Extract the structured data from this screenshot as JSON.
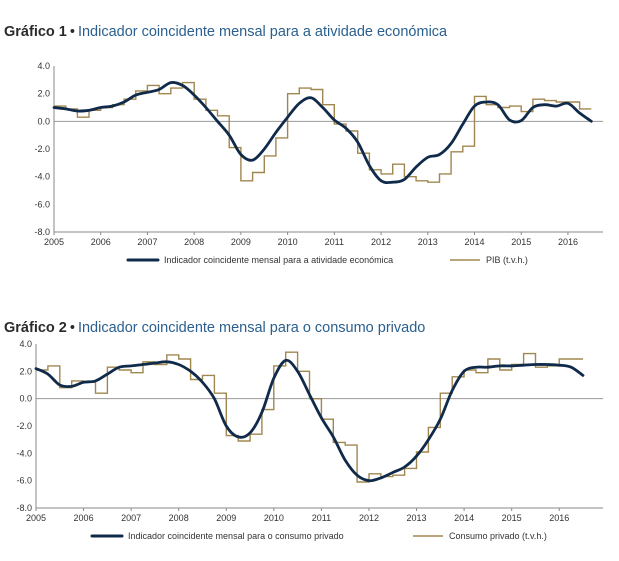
{
  "chart_data": [
    {
      "type": "line",
      "number": "Gráfico 1",
      "title": "Indicador coincidente mensal para a atividade económica",
      "xlim": [
        2005,
        2016.75
      ],
      "ylim": [
        -8,
        4
      ],
      "x_ticks": [
        "2005",
        "2006",
        "2007",
        "2008",
        "2009",
        "2010",
        "2011",
        "2012",
        "2013",
        "2014",
        "2015",
        "2016"
      ],
      "y_ticks": [
        "4.0",
        "2.0",
        "0.0",
        "-2.0",
        "-4.0",
        "-6.0",
        "-8.0"
      ],
      "series": [
        {
          "name": "Indicador coincidente mensal para a atividade económica",
          "color": "#0f2a4a",
          "style": "smooth",
          "x": [
            2005.0,
            2005.25,
            2005.5,
            2005.75,
            2006.0,
            2006.25,
            2006.5,
            2006.75,
            2007.0,
            2007.25,
            2007.5,
            2007.75,
            2008.0,
            2008.25,
            2008.5,
            2008.75,
            2009.0,
            2009.25,
            2009.5,
            2009.75,
            2010.0,
            2010.25,
            2010.5,
            2010.75,
            2011.0,
            2011.25,
            2011.5,
            2011.75,
            2012.0,
            2012.25,
            2012.5,
            2012.75,
            2013.0,
            2013.25,
            2013.5,
            2013.75,
            2014.0,
            2014.25,
            2014.5,
            2014.75,
            2015.0,
            2015.25,
            2015.5,
            2015.75,
            2016.0,
            2016.25,
            2016.5
          ],
          "y": [
            1.0,
            0.9,
            0.75,
            0.8,
            1.0,
            1.1,
            1.4,
            1.9,
            2.1,
            2.3,
            2.8,
            2.6,
            1.9,
            1.0,
            0.0,
            -1.0,
            -2.4,
            -2.8,
            -2.0,
            -0.8,
            0.3,
            1.3,
            1.7,
            1.0,
            0.1,
            -0.5,
            -1.5,
            -3.2,
            -4.3,
            -4.4,
            -4.2,
            -3.3,
            -2.6,
            -2.4,
            -1.6,
            -0.2,
            1.1,
            1.4,
            1.2,
            0.1,
            0.05,
            1.0,
            1.2,
            1.1,
            1.3,
            0.6,
            0.0
          ]
        },
        {
          "name": "PIB (t.v.h.)",
          "color": "#a0874f",
          "style": "step",
          "x": [
            2005.0,
            2005.25,
            2005.5,
            2005.75,
            2006.0,
            2006.25,
            2006.5,
            2006.75,
            2007.0,
            2007.25,
            2007.5,
            2007.75,
            2008.0,
            2008.25,
            2008.5,
            2008.75,
            2009.0,
            2009.25,
            2009.5,
            2009.75,
            2010.0,
            2010.25,
            2010.5,
            2010.75,
            2011.0,
            2011.25,
            2011.5,
            2011.75,
            2012.0,
            2012.25,
            2012.5,
            2012.75,
            2013.0,
            2013.25,
            2013.5,
            2013.75,
            2014.0,
            2014.25,
            2014.5,
            2014.75,
            2015.0,
            2015.25,
            2015.5,
            2015.75,
            2016.0,
            2016.25
          ],
          "y": [
            1.1,
            0.9,
            0.3,
            0.8,
            1.0,
            1.2,
            1.6,
            2.2,
            2.6,
            2.0,
            2.4,
            2.8,
            1.6,
            0.8,
            0.4,
            -1.9,
            -4.3,
            -3.7,
            -2.5,
            -1.2,
            2.0,
            2.4,
            2.3,
            1.2,
            -0.2,
            -0.7,
            -2.3,
            -3.5,
            -3.8,
            -3.1,
            -4.0,
            -4.3,
            -4.4,
            -3.8,
            -2.2,
            -1.8,
            1.8,
            1.2,
            1.0,
            1.1,
            0.7,
            1.6,
            1.5,
            1.4,
            1.4,
            0.9
          ]
        }
      ]
    },
    {
      "type": "line",
      "number": "Gráfico 2",
      "title": "Indicador coincidente mensal para o consumo privado",
      "xlim": [
        2005,
        2016.92
      ],
      "ylim": [
        -8,
        4
      ],
      "x_ticks": [
        "2005",
        "2006",
        "2007",
        "2008",
        "2009",
        "2010",
        "2011",
        "2012",
        "2013",
        "2014",
        "2015",
        "2016"
      ],
      "y_ticks": [
        "4.0",
        "2.0",
        "0.0",
        "-2.0",
        "-4.0",
        "-6.0",
        "-8.0"
      ],
      "series": [
        {
          "name": "Indicador coincidente mensal para o consumo privado",
          "color": "#0f2a4a",
          "style": "smooth",
          "x": [
            2005.0,
            2005.25,
            2005.5,
            2005.75,
            2006.0,
            2006.25,
            2006.5,
            2006.75,
            2007.0,
            2007.25,
            2007.5,
            2007.75,
            2008.0,
            2008.25,
            2008.5,
            2008.75,
            2009.0,
            2009.25,
            2009.5,
            2009.75,
            2010.0,
            2010.25,
            2010.5,
            2010.75,
            2011.0,
            2011.25,
            2011.5,
            2011.75,
            2012.0,
            2012.25,
            2012.5,
            2012.75,
            2013.0,
            2013.25,
            2013.5,
            2013.75,
            2014.0,
            2014.25,
            2014.5,
            2014.75,
            2015.0,
            2015.25,
            2015.5,
            2015.75,
            2016.0,
            2016.25,
            2016.5
          ],
          "y": [
            2.2,
            1.8,
            1.0,
            0.9,
            1.2,
            1.3,
            1.8,
            2.3,
            2.4,
            2.5,
            2.6,
            2.7,
            2.5,
            2.0,
            1.2,
            0.0,
            -2.0,
            -2.8,
            -2.5,
            -1.0,
            1.5,
            2.8,
            2.0,
            0.3,
            -1.4,
            -2.8,
            -4.5,
            -5.6,
            -6.0,
            -5.8,
            -5.4,
            -5.0,
            -4.2,
            -3.0,
            -1.5,
            0.6,
            2.0,
            2.3,
            2.3,
            2.4,
            2.4,
            2.45,
            2.5,
            2.5,
            2.45,
            2.3,
            1.7
          ]
        },
        {
          "name": "Consumo privado (t.v.h.)",
          "color": "#a0874f",
          "style": "step",
          "x": [
            2005.0,
            2005.25,
            2005.5,
            2005.75,
            2006.0,
            2006.25,
            2006.5,
            2006.75,
            2007.0,
            2007.25,
            2007.5,
            2007.75,
            2008.0,
            2008.25,
            2008.5,
            2008.75,
            2009.0,
            2009.25,
            2009.5,
            2009.75,
            2010.0,
            2010.25,
            2010.5,
            2010.75,
            2011.0,
            2011.25,
            2011.5,
            2011.75,
            2012.0,
            2012.25,
            2012.5,
            2012.75,
            2013.0,
            2013.25,
            2013.5,
            2013.75,
            2014.0,
            2014.25,
            2014.5,
            2014.75,
            2015.0,
            2015.25,
            2015.5,
            2015.75,
            2016.0,
            2016.25
          ],
          "y": [
            2.1,
            2.4,
            0.8,
            1.3,
            1.2,
            0.4,
            2.3,
            2.1,
            1.9,
            2.7,
            2.5,
            3.2,
            2.9,
            1.4,
            1.7,
            0.4,
            -2.7,
            -3.1,
            -2.6,
            -0.8,
            2.4,
            3.4,
            2.0,
            0.0,
            -1.5,
            -3.2,
            -3.4,
            -6.1,
            -5.5,
            -5.7,
            -5.6,
            -5.1,
            -3.9,
            -2.1,
            0.4,
            1.6,
            2.1,
            1.9,
            2.9,
            2.1,
            2.5,
            3.3,
            2.3,
            2.4,
            2.9,
            2.9
          ]
        }
      ]
    }
  ]
}
